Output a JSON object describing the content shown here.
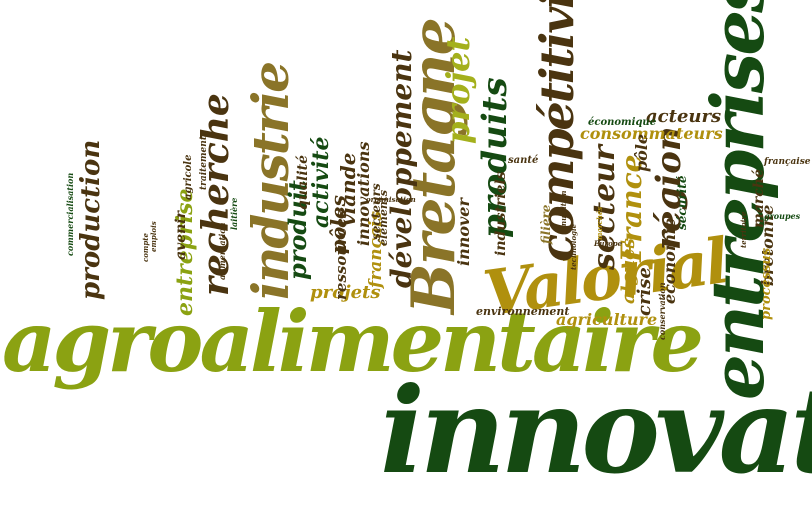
{
  "colors": {
    "dark_green": "#154a12",
    "olive": "#8ba212",
    "gold": "#b0900e",
    "brown": "#4a3410",
    "light_olive": "#a4b01c",
    "tan": "#8a7428"
  },
  "words": {
    "innovation": "innovation",
    "agroalimentaire": "agroalimentaire",
    "entreprises": "entreprises",
    "valorial": "Valorial",
    "bretagne": "Bretagne",
    "industrie": "industrie",
    "competitivite": "compétitivité",
    "recherche": "recherche",
    "projet": "projet",
    "developpement": "développement",
    "produits": "produits",
    "region": "région",
    "secteur": "secteur",
    "france": "France",
    "production": "production",
    "entreprise": "entreprise",
    "produit": "produit",
    "activite": "activité",
    "poles": "pôles",
    "viande": "viande",
    "projets": "projets",
    "innovations": "innovations",
    "ressources": "ressources",
    "francais": "français",
    "consommateurs": "consommateurs",
    "acteurs": "acteurs",
    "pole": "pôle",
    "agriculture": "agriculture",
    "algues": "algues",
    "economie": "économie",
    "crise": "crise",
    "bretonne": "bretonne",
    "marche": "marché",
    "innover": "innover",
    "industriels": "industriels",
    "environnement": "environnement",
    "processus": "processus",
    "avenir": "avenir",
    "qualite": "qualité",
    "economique": "économique",
    "securite": "sécurité",
    "filiere": "filière",
    "secteurs": "secteurs",
    "elements": "éléments",
    "sante": "santé",
    "agricole": "agricole",
    "commercialisation": "commercialisation",
    "traitements": "traitements",
    "francaise": "française",
    "groupes": "groupes",
    "technologie": "technologie",
    "alimentation": "alimentation",
    "laitiere": "laitière",
    "organisation": "organisation",
    "nutrition": "nutrition",
    "conservation": "conservation",
    "marches": "marchés",
    "europe": "Europe",
    "emplois": "emplois",
    "compte": "compte",
    "territoire": "territoire"
  }
}
